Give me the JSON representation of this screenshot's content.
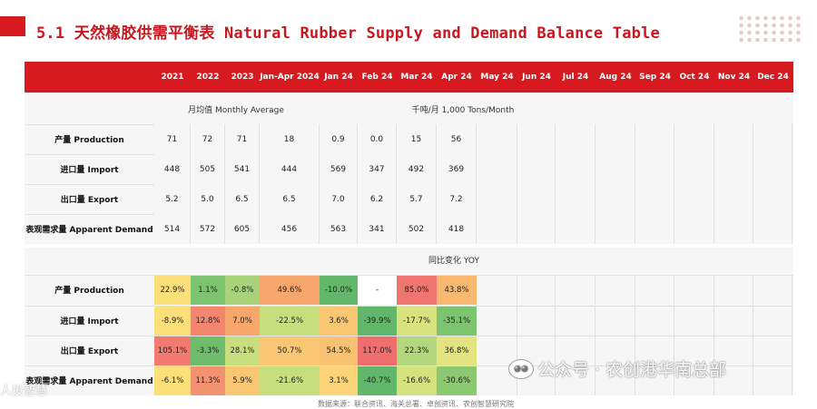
{
  "title": "5.1 天然橡胶供需平衡表 Natural Rubber Supply and Demand Balance Table",
  "columns": [
    "2021",
    "2022",
    "2023",
    "Jan-Apr 2024",
    "Jan 24",
    "Feb 24",
    "Mar 24",
    "Apr 24",
    "May 24",
    "Jun 24",
    "Jul 24",
    "Aug 24",
    "Sep 24",
    "Oct 24",
    "Nov 24",
    "Dec 24"
  ],
  "section1": {
    "left_label": "月均值  Monthly Average",
    "right_label": "千吨/月  1,000 Tons/Month",
    "rows": [
      {
        "label": "产量 Production",
        "values": [
          "71",
          "72",
          "71",
          "18",
          "0.9",
          "0.0",
          "15",
          "56"
        ]
      },
      {
        "label": "进口量 Import",
        "values": [
          "448",
          "505",
          "541",
          "444",
          "569",
          "347",
          "492",
          "369"
        ]
      },
      {
        "label": "出口量 Export",
        "values": [
          "5.2",
          "5.0",
          "6.5",
          "6.5",
          "7.0",
          "6.2",
          "5.7",
          "7.2"
        ]
      },
      {
        "label": "表观需求量 Apparent Demand",
        "values": [
          "514",
          "572",
          "605",
          "456",
          "563",
          "341",
          "502",
          "418"
        ]
      }
    ]
  },
  "section2": {
    "label": "同比变化 YOY",
    "rows": [
      {
        "label": "产量 Production",
        "values": [
          "22.9%",
          "1.1%",
          "-0.8%",
          "49.6%",
          "-10.0%",
          "-",
          "85.0%",
          "43.8%"
        ],
        "colors": [
          "#fbe07a",
          "#7cc46f",
          "#a9d37a",
          "#f7a66c",
          "#63b76a",
          "#ffffff",
          "#f07470",
          "#f9b870"
        ]
      },
      {
        "label": "进口量 Import",
        "values": [
          "-8.9%",
          "12.8%",
          "7.0%",
          "-22.5%",
          "3.6%",
          "-39.9%",
          "-17.7%",
          "-35.1%"
        ],
        "colors": [
          "#fbe07a",
          "#f2866e",
          "#f7a66c",
          "#c6de7e",
          "#f9c774",
          "#63b76a",
          "#d8e27f",
          "#7cc46f"
        ]
      },
      {
        "label": "出口量 Export",
        "values": [
          "105.1%",
          "-3.3%",
          "28.1%",
          "50.7%",
          "54.5%",
          "117.0%",
          "22.3%",
          "36.8%"
        ],
        "colors": [
          "#f27a70",
          "#6fbd6c",
          "#c9df7f",
          "#f9c774",
          "#f9c270",
          "#ef6f6e",
          "#b3d77c",
          "#e3e481"
        ]
      },
      {
        "label": "表观需求量 Apparent Demand",
        "values": [
          "-6.1%",
          "11.3%",
          "5.9%",
          "-21.6%",
          "3.1%",
          "-40.7%",
          "-16.6%",
          "-30.6%"
        ],
        "colors": [
          "#fbe07a",
          "#f29270",
          "#f9c774",
          "#c6de7e",
          "#fbd478",
          "#63b76a",
          "#d3e17f",
          "#8cc972"
        ]
      }
    ]
  },
  "watermark": {
    "text": "公众号 · 农创港华南总部",
    "icon": "wechat-icon"
  },
  "watermark2": "人投智慧",
  "footer": "数据来源：联合资讯、海关总署、卓创资讯、农创智慧研究院"
}
